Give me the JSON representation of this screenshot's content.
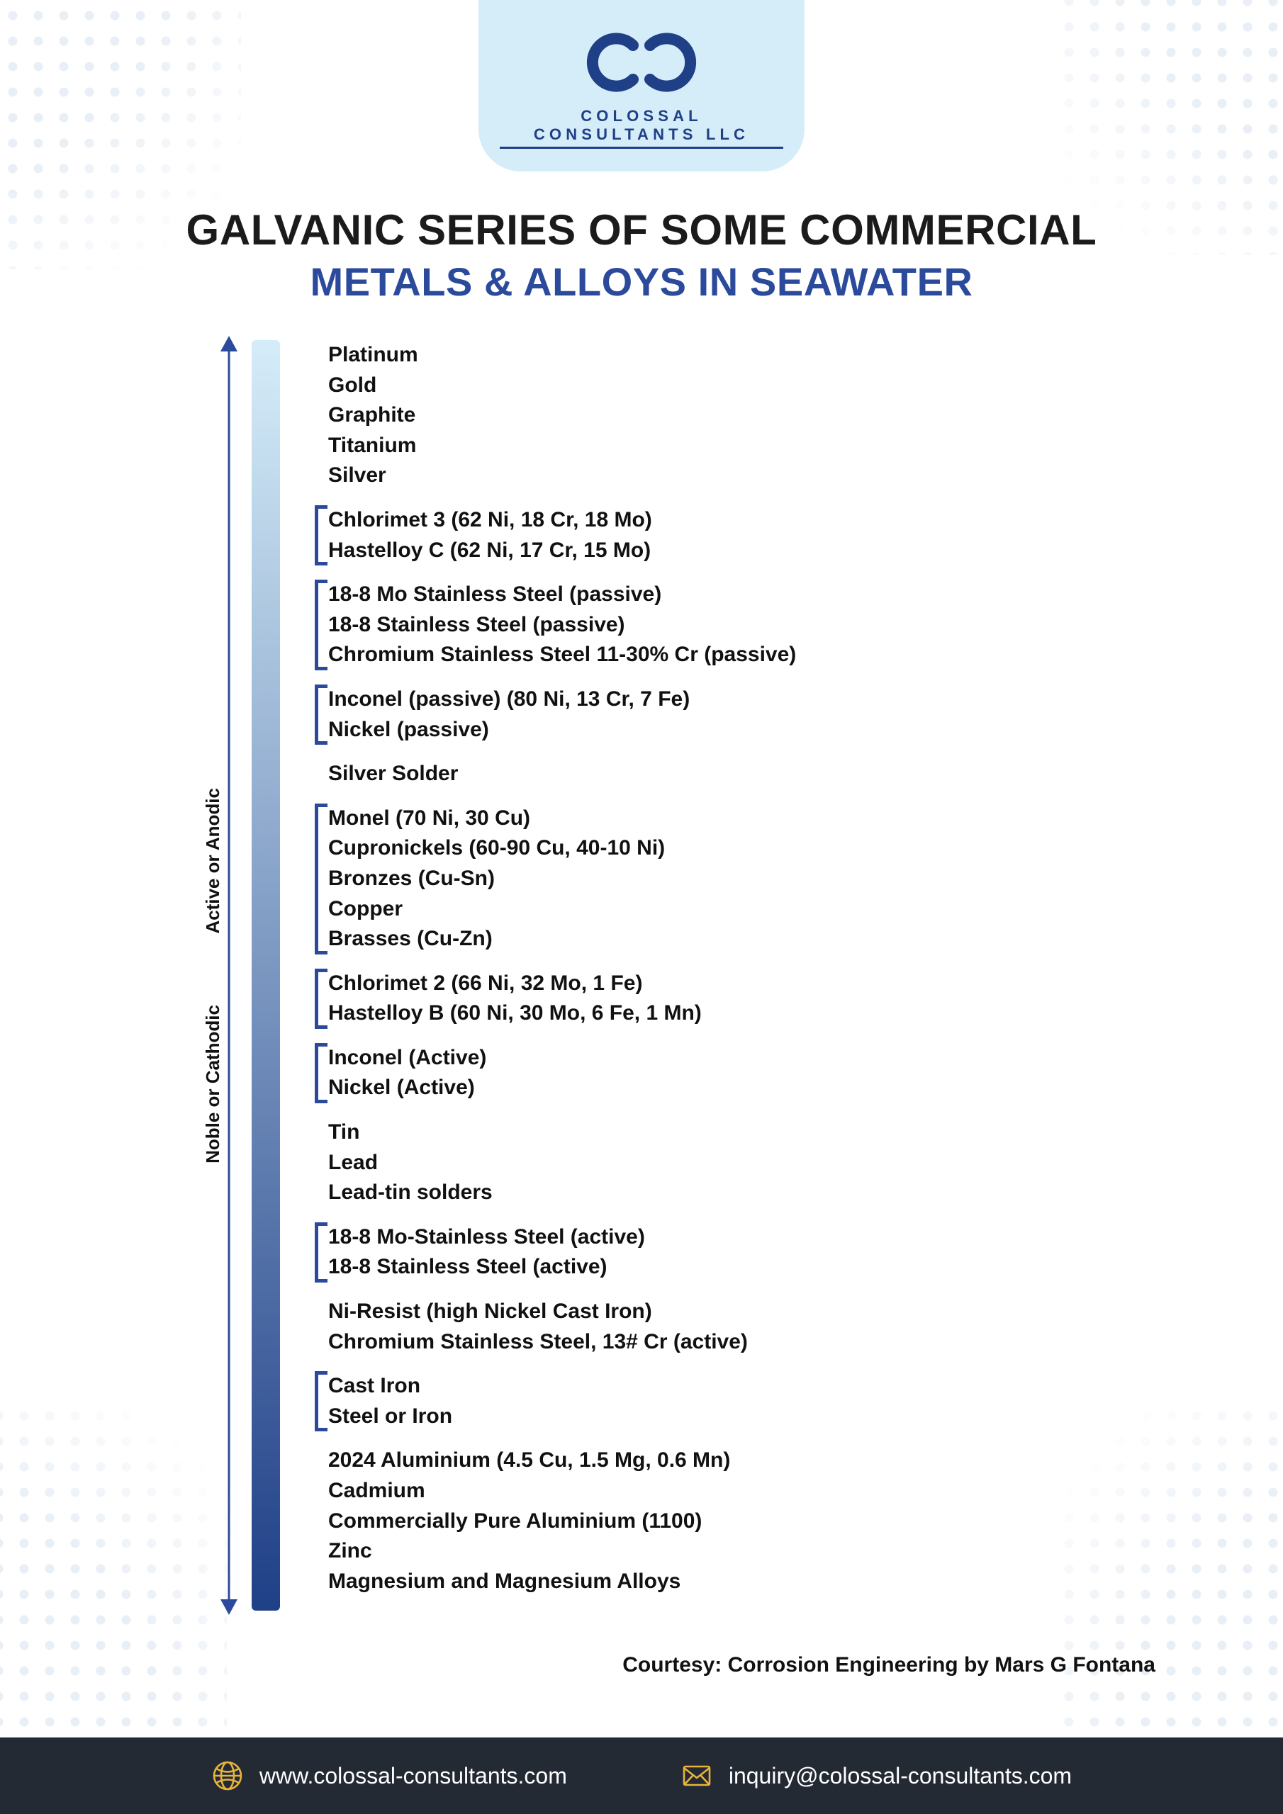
{
  "logo": {
    "company_name": "COLOSSAL CONSULTANTS LLC",
    "text_color": "#1f3f87",
    "card_bg": "#d5edf9"
  },
  "title": {
    "line1": "GALVANIC SERIES OF SOME COMMERCIAL",
    "line2": "METALS & ALLOYS IN SEAWATER",
    "line1_color": "#1b1b1b",
    "line2_color": "#2b4a9b",
    "line1_fontsize": 60,
    "line2_fontsize": 56
  },
  "axis": {
    "top_label": "Active or Anodic",
    "bottom_label": "Noble or Cathodic",
    "arrow_color": "#2b4a9b",
    "gradient_top": "#d5edf9",
    "gradient_bottom": "#1f3f87",
    "bracket_color": "#2b4a9b"
  },
  "series_groups": [
    {
      "bracket": false,
      "items": [
        "Platinum",
        "Gold",
        "Graphite",
        "Titanium",
        "Silver"
      ]
    },
    {
      "bracket": true,
      "items": [
        "Chlorimet 3  (62 Ni, 18 Cr, 18 Mo)",
        "Hastelloy C (62 Ni, 17 Cr, 15 Mo)"
      ]
    },
    {
      "bracket": true,
      "items": [
        "18-8 Mo Stainless Steel (passive)",
        "18-8 Stainless Steel (passive)",
        "Chromium Stainless Steel 11-30% Cr (passive)"
      ]
    },
    {
      "bracket": true,
      "items": [
        "Inconel (passive) (80 Ni, 13 Cr, 7 Fe)",
        "Nickel (passive)"
      ]
    },
    {
      "bracket": false,
      "items": [
        "Silver Solder"
      ]
    },
    {
      "bracket": true,
      "items": [
        "Monel (70 Ni, 30 Cu)",
        "Cupronickels (60-90 Cu, 40-10 Ni)",
        "Bronzes (Cu-Sn)",
        "Copper",
        "Brasses (Cu-Zn)"
      ]
    },
    {
      "bracket": true,
      "items": [
        "Chlorimet 2  (66 Ni, 32 Mo, 1 Fe)",
        "Hastelloy B (60 Ni, 30 Mo, 6 Fe, 1 Mn)"
      ]
    },
    {
      "bracket": true,
      "items": [
        "Inconel (Active)",
        "Nickel (Active)"
      ]
    },
    {
      "bracket": false,
      "items": [
        "Tin",
        "Lead",
        "Lead-tin solders"
      ]
    },
    {
      "bracket": true,
      "items": [
        "18-8 Mo-Stainless Steel (active)",
        "18-8 Stainless Steel (active)"
      ]
    },
    {
      "bracket": false,
      "items": [
        "Ni-Resist (high Nickel Cast Iron)",
        "Chromium Stainless Steel, 13# Cr (active)"
      ]
    },
    {
      "bracket": true,
      "items": [
        "Cast Iron",
        "Steel or Iron"
      ]
    },
    {
      "bracket": false,
      "items": [
        "2024 Aluminium (4.5 Cu, 1.5 Mg, 0.6 Mn)",
        "Cadmium",
        "Commercially Pure Aluminium (1100)",
        "Zinc",
        "Magnesium and Magnesium Alloys"
      ]
    }
  ],
  "item_style": {
    "font_size": 30,
    "font_weight": 800,
    "color": "#111111",
    "line_height": 1.42
  },
  "courtesy": "Courtesy: Corrosion Engineering by Mars G Fontana",
  "footer": {
    "bg": "#232a34",
    "icon_color": "#e8b43a",
    "text_color": "#ffffff",
    "website": "www.colossal-consultants.com",
    "email": "inquiry@colossal-consultants.com"
  }
}
